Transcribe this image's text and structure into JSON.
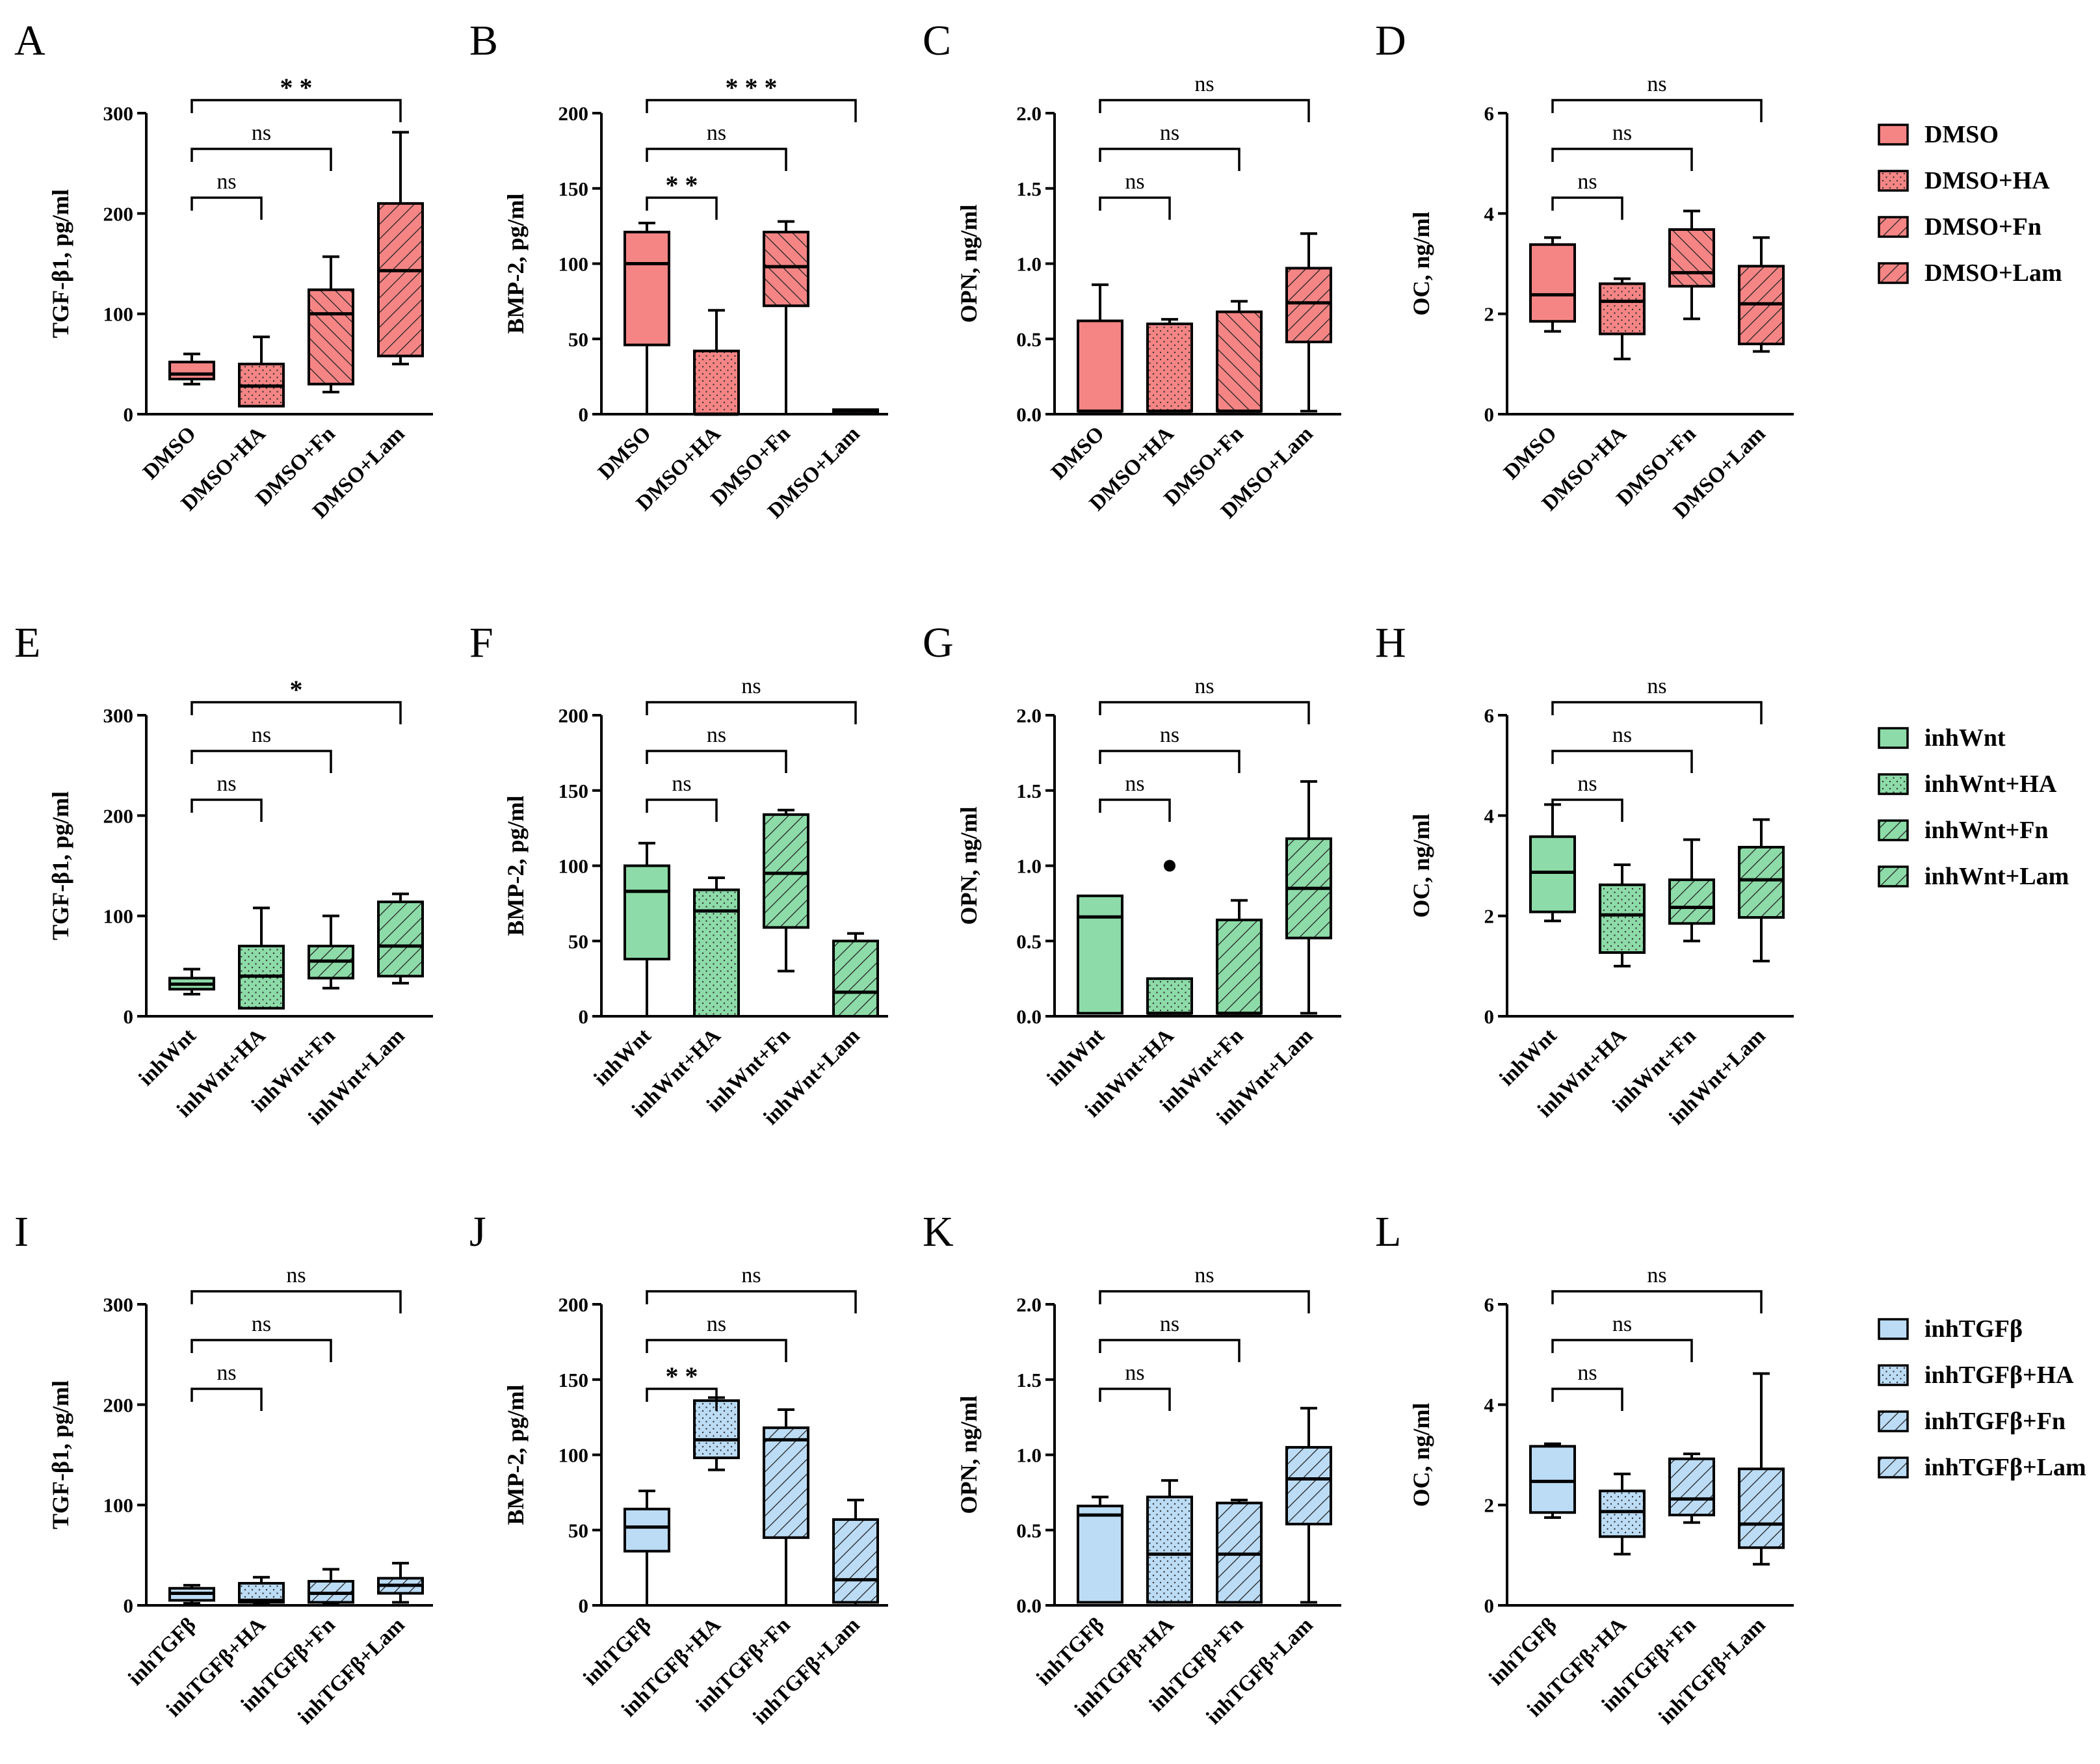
{
  "figure": {
    "colors": {
      "DMSO": "#f58585",
      "inhWnt": "#8ddba8",
      "inhTGFb": "#bcdcf5",
      "line": "#000000",
      "black": "#000000"
    },
    "legends": [
      {
        "row": 0,
        "entries": [
          {
            "label": "DMSO",
            "pattern": "solid"
          },
          {
            "label": "DMSO+HA",
            "pattern": "dots"
          },
          {
            "label": "DMSO+Fn",
            "pattern": "hatchR"
          },
          {
            "label": "DMSO+Lam",
            "pattern": "hatchR"
          }
        ]
      },
      {
        "row": 1,
        "entries": [
          {
            "label": "inhWnt",
            "pattern": "solid"
          },
          {
            "label": "inhWnt+HA",
            "pattern": "dots"
          },
          {
            "label": "inhWnt+Fn",
            "pattern": "hatchR"
          },
          {
            "label": "inhWnt+Lam",
            "pattern": "hatchR"
          }
        ]
      },
      {
        "row": 2,
        "entries": [
          {
            "label": "inhTGFβ",
            "pattern": "solid"
          },
          {
            "label": "inhTGFβ+HA",
            "pattern": "dots"
          },
          {
            "label": "inhTGFβ+Fn",
            "pattern": "hatchR"
          },
          {
            "label": "inhTGFβ+Lam",
            "pattern": "hatchR"
          }
        ]
      }
    ]
  },
  "chart_data": [
    {
      "panel": "A",
      "type": "box",
      "row": 0,
      "col": 0,
      "color": "DMSO",
      "ylabel": "TGF-β1, pg/ml",
      "ylim": [
        0,
        300
      ],
      "yticks": [
        "0",
        "100",
        "200",
        "300"
      ],
      "categories": [
        "DMSO",
        "DMSO+HA",
        "DMSO+Fn",
        "DMSO+Lam"
      ],
      "patterns": [
        "solid",
        "dots",
        "hatchL",
        "hatchR"
      ],
      "boxes": [
        {
          "min": 30,
          "q1": 35,
          "median": 40,
          "q3": 52,
          "max": 60
        },
        {
          "min": 8,
          "q1": 8,
          "median": 28,
          "q3": 50,
          "max": 77
        },
        {
          "min": 22,
          "q1": 30,
          "median": 100,
          "q3": 124,
          "max": 157
        },
        {
          "min": 50,
          "q1": 58,
          "median": 143,
          "q3": 210,
          "max": 281
        }
      ],
      "brackets": [
        {
          "to": 1,
          "label": "ns",
          "level": 0
        },
        {
          "to": 2,
          "label": "ns",
          "level": 1
        },
        {
          "to": 3,
          "label": "* *",
          "level": 2
        }
      ]
    },
    {
      "panel": "B",
      "type": "box",
      "row": 0,
      "col": 1,
      "color": "DMSO",
      "ylabel": "BMP-2, pg/ml",
      "ylim": [
        0,
        200
      ],
      "yticks": [
        "0",
        "50",
        "100",
        "150",
        "200"
      ],
      "categories": [
        "DMSO",
        "DMSO+HA",
        "DMSO+Fn",
        "DMSO+Lam"
      ],
      "patterns": [
        "solid",
        "dots",
        "hatchL",
        "hatchR"
      ],
      "boxes": [
        {
          "min": 0,
          "q1": 46,
          "median": 100,
          "q3": 121,
          "max": 127
        },
        {
          "min": 0,
          "q1": 0,
          "median": 0,
          "q3": 42,
          "max": 69
        },
        {
          "min": 0,
          "q1": 72,
          "median": 98,
          "q3": 121,
          "max": 128
        },
        {
          "min": 0,
          "q1": 0,
          "median": 2,
          "q3": 3,
          "max": 3
        }
      ],
      "brackets": [
        {
          "to": 1,
          "label": "* *",
          "level": 0
        },
        {
          "to": 2,
          "label": "ns",
          "level": 1
        },
        {
          "to": 3,
          "label": "* * *",
          "level": 2
        }
      ]
    },
    {
      "panel": "C",
      "type": "box",
      "row": 0,
      "col": 2,
      "color": "DMSO",
      "ylabel": "OPN, ng/ml",
      "ylim": [
        0,
        2
      ],
      "yticks": [
        "0.0",
        "0.5",
        "1.0",
        "1.5",
        "2.0"
      ],
      "categories": [
        "DMSO",
        "DMSO+HA",
        "DMSO+Fn",
        "DMSO+Lam"
      ],
      "patterns": [
        "solid",
        "dots",
        "hatchL",
        "hatchR"
      ],
      "boxes": [
        {
          "min": 0.02,
          "q1": 0.02,
          "median": 0.02,
          "q3": 0.62,
          "max": 0.86
        },
        {
          "min": 0.02,
          "q1": 0.02,
          "median": 0.02,
          "q3": 0.6,
          "max": 0.63
        },
        {
          "min": 0.02,
          "q1": 0.02,
          "median": 0.02,
          "q3": 0.68,
          "max": 0.75
        },
        {
          "min": 0.02,
          "q1": 0.48,
          "median": 0.74,
          "q3": 0.97,
          "max": 1.2
        }
      ],
      "brackets": [
        {
          "to": 1,
          "label": "ns",
          "level": 0
        },
        {
          "to": 2,
          "label": "ns",
          "level": 1
        },
        {
          "to": 3,
          "label": "ns",
          "level": 2
        }
      ]
    },
    {
      "panel": "D",
      "type": "box",
      "row": 0,
      "col": 3,
      "color": "DMSO",
      "ylabel": "OC, ng/ml",
      "ylim": [
        0,
        6
      ],
      "yticks": [
        "0",
        "2",
        "4",
        "6"
      ],
      "categories": [
        "DMSO",
        "DMSO+HA",
        "DMSO+Fn",
        "DMSO+Lam"
      ],
      "patterns": [
        "solid",
        "dots",
        "hatchL",
        "hatchR"
      ],
      "boxes": [
        {
          "min": 1.65,
          "q1": 1.85,
          "median": 2.38,
          "q3": 3.38,
          "max": 3.52
        },
        {
          "min": 1.1,
          "q1": 1.6,
          "median": 2.25,
          "q3": 2.6,
          "max": 2.7
        },
        {
          "min": 1.9,
          "q1": 2.55,
          "median": 2.82,
          "q3": 3.68,
          "max": 4.05
        },
        {
          "min": 1.25,
          "q1": 1.4,
          "median": 2.2,
          "q3": 2.95,
          "max": 3.52
        }
      ],
      "brackets": [
        {
          "to": 1,
          "label": "ns",
          "level": 0
        },
        {
          "to": 2,
          "label": "ns",
          "level": 1
        },
        {
          "to": 3,
          "label": "ns",
          "level": 2
        }
      ]
    },
    {
      "panel": "E",
      "type": "box",
      "row": 1,
      "col": 0,
      "color": "inhWnt",
      "ylabel": "TGF-β1, pg/ml",
      "ylim": [
        0,
        300
      ],
      "yticks": [
        "0",
        "100",
        "200",
        "300"
      ],
      "categories": [
        "inhWnt",
        "inhWnt+HA",
        "inhWnt+Fn",
        "inhWnt+Lam"
      ],
      "patterns": [
        "solid",
        "dots",
        "hatchR",
        "hatchR"
      ],
      "boxes": [
        {
          "min": 22,
          "q1": 27,
          "median": 32,
          "q3": 38,
          "max": 47
        },
        {
          "min": 8,
          "q1": 8,
          "median": 40,
          "q3": 70,
          "max": 108
        },
        {
          "min": 28,
          "q1": 38,
          "median": 55,
          "q3": 70,
          "max": 100
        },
        {
          "min": 33,
          "q1": 40,
          "median": 70,
          "q3": 114,
          "max": 122
        }
      ],
      "brackets": [
        {
          "to": 1,
          "label": "ns",
          "level": 0
        },
        {
          "to": 2,
          "label": "ns",
          "level": 1
        },
        {
          "to": 3,
          "label": "*",
          "level": 2
        }
      ]
    },
    {
      "panel": "F",
      "type": "box",
      "row": 1,
      "col": 1,
      "color": "inhWnt",
      "ylabel": "BMP-2, pg/ml",
      "ylim": [
        0,
        200
      ],
      "yticks": [
        "0",
        "50",
        "100",
        "150",
        "200"
      ],
      "categories": [
        "inhWnt",
        "inhWnt+HA",
        "inhWnt+Fn",
        "inhWnt+Lam"
      ],
      "patterns": [
        "solid",
        "dots",
        "hatchR",
        "hatchR"
      ],
      "boxes": [
        {
          "min": 0,
          "q1": 38,
          "median": 83,
          "q3": 100,
          "max": 115
        },
        {
          "min": 0,
          "q1": 0,
          "median": 70,
          "q3": 84,
          "max": 92
        },
        {
          "min": 30,
          "q1": 59,
          "median": 95,
          "q3": 134,
          "max": 137
        },
        {
          "min": 0,
          "q1": 0,
          "median": 16,
          "q3": 50,
          "max": 55
        }
      ],
      "brackets": [
        {
          "to": 1,
          "label": "ns",
          "level": 0
        },
        {
          "to": 2,
          "label": "ns",
          "level": 1
        },
        {
          "to": 3,
          "label": "ns",
          "level": 2
        }
      ]
    },
    {
      "panel": "G",
      "type": "box",
      "row": 1,
      "col": 2,
      "color": "inhWnt",
      "ylabel": "OPN, ng/ml",
      "ylim": [
        0,
        2
      ],
      "yticks": [
        "0.0",
        "0.5",
        "1.0",
        "1.5",
        "2.0"
      ],
      "categories": [
        "inhWnt",
        "inhWnt+HA",
        "inhWnt+Fn",
        "inhWnt+Lam"
      ],
      "patterns": [
        "solid",
        "dots",
        "hatchR",
        "hatchR"
      ],
      "boxes": [
        {
          "min": 0.02,
          "q1": 0.02,
          "median": 0.66,
          "q3": 0.8,
          "max": 0.8
        },
        {
          "min": 0.02,
          "q1": 0.02,
          "median": 0.02,
          "q3": 0.25,
          "max": 0.25,
          "outlier": 1.0
        },
        {
          "min": 0.02,
          "q1": 0.02,
          "median": 0.02,
          "q3": 0.64,
          "max": 0.77
        },
        {
          "min": 0.02,
          "q1": 0.52,
          "median": 0.85,
          "q3": 1.18,
          "max": 1.56
        }
      ],
      "brackets": [
        {
          "to": 1,
          "label": "ns",
          "level": 0
        },
        {
          "to": 2,
          "label": "ns",
          "level": 1
        },
        {
          "to": 3,
          "label": "ns",
          "level": 2
        }
      ]
    },
    {
      "panel": "H",
      "type": "box",
      "row": 1,
      "col": 3,
      "color": "inhWnt",
      "ylabel": "OC, ng/ml",
      "ylim": [
        0,
        6
      ],
      "yticks": [
        "0",
        "2",
        "4",
        "6"
      ],
      "categories": [
        "inhWnt",
        "inhWnt+HA",
        "inhWnt+Fn",
        "inhWnt+Lam"
      ],
      "patterns": [
        "solid",
        "dots",
        "hatchR",
        "hatchR"
      ],
      "boxes": [
        {
          "min": 1.9,
          "q1": 2.08,
          "median": 2.87,
          "q3": 3.58,
          "max": 4.22
        },
        {
          "min": 1.0,
          "q1": 1.27,
          "median": 2.02,
          "q3": 2.62,
          "max": 3.02
        },
        {
          "min": 1.5,
          "q1": 1.85,
          "median": 2.17,
          "q3": 2.72,
          "max": 3.52
        },
        {
          "min": 1.1,
          "q1": 1.97,
          "median": 2.72,
          "q3": 3.37,
          "max": 3.92
        }
      ],
      "brackets": [
        {
          "to": 1,
          "label": "ns",
          "level": 0
        },
        {
          "to": 2,
          "label": "ns",
          "level": 1
        },
        {
          "to": 3,
          "label": "ns",
          "level": 2
        }
      ]
    },
    {
      "panel": "I",
      "type": "box",
      "row": 2,
      "col": 0,
      "color": "inhTGFb",
      "ylabel": "TGF-β1, pg/ml",
      "ylim": [
        0,
        300
      ],
      "yticks": [
        "0",
        "100",
        "200",
        "300"
      ],
      "categories": [
        "inhTGFβ",
        "inhTGFβ+HA",
        "inhTGFβ+Fn",
        "inhTGFβ+Lam"
      ],
      "patterns": [
        "solid",
        "dots",
        "hatchR",
        "hatchR"
      ],
      "boxes": [
        {
          "min": 2,
          "q1": 5,
          "median": 12,
          "q3": 17,
          "max": 20
        },
        {
          "min": 2,
          "q1": 3,
          "median": 5,
          "q3": 22,
          "max": 28
        },
        {
          "min": 2,
          "q1": 3,
          "median": 12,
          "q3": 24,
          "max": 36
        },
        {
          "min": 3,
          "q1": 12,
          "median": 20,
          "q3": 27,
          "max": 42
        }
      ],
      "brackets": [
        {
          "to": 1,
          "label": "ns",
          "level": 0
        },
        {
          "to": 2,
          "label": "ns",
          "level": 1
        },
        {
          "to": 3,
          "label": "ns",
          "level": 2
        }
      ]
    },
    {
      "panel": "J",
      "type": "box",
      "row": 2,
      "col": 1,
      "color": "inhTGFb",
      "ylabel": "BMP-2, pg/ml",
      "ylim": [
        0,
        200
      ],
      "yticks": [
        "0",
        "50",
        "100",
        "150",
        "200"
      ],
      "categories": [
        "inhTGFβ",
        "inhTGFβ+HA",
        "inhTGFβ+Fn",
        "inhTGFβ+Lam"
      ],
      "patterns": [
        "solid",
        "dots",
        "hatchR",
        "hatchR"
      ],
      "boxes": [
        {
          "min": 0,
          "q1": 36,
          "median": 52,
          "q3": 64,
          "max": 76
        },
        {
          "min": 90,
          "q1": 98,
          "median": 110,
          "q3": 136,
          "max": 138
        },
        {
          "min": 0,
          "q1": 45,
          "median": 110,
          "q3": 118,
          "max": 130
        },
        {
          "min": 0,
          "q1": 2,
          "median": 17,
          "q3": 57,
          "max": 70
        }
      ],
      "brackets": [
        {
          "to": 1,
          "label": "* *",
          "level": 0
        },
        {
          "to": 2,
          "label": "ns",
          "level": 1
        },
        {
          "to": 3,
          "label": "ns",
          "level": 2
        }
      ]
    },
    {
      "panel": "K",
      "type": "box",
      "row": 2,
      "col": 2,
      "color": "inhTGFb",
      "ylabel": "OPN, ng/ml",
      "ylim": [
        0,
        2
      ],
      "yticks": [
        "0.0",
        "0.5",
        "1.0",
        "1.5",
        "2.0"
      ],
      "categories": [
        "inhTGFβ",
        "inhTGFβ+HA",
        "inhTGFβ+Fn",
        "inhTGFβ+Lam"
      ],
      "patterns": [
        "solid",
        "dots",
        "hatchR",
        "hatchR"
      ],
      "boxes": [
        {
          "min": 0.02,
          "q1": 0.02,
          "median": 0.6,
          "q3": 0.66,
          "max": 0.72
        },
        {
          "min": 0.02,
          "q1": 0.02,
          "median": 0.34,
          "q3": 0.72,
          "max": 0.83
        },
        {
          "min": 0.02,
          "q1": 0.02,
          "median": 0.34,
          "q3": 0.68,
          "max": 0.7
        },
        {
          "min": 0.02,
          "q1": 0.54,
          "median": 0.84,
          "q3": 1.05,
          "max": 1.31
        }
      ],
      "brackets": [
        {
          "to": 1,
          "label": "ns",
          "level": 0
        },
        {
          "to": 2,
          "label": "ns",
          "level": 1
        },
        {
          "to": 3,
          "label": "ns",
          "level": 2
        }
      ]
    },
    {
      "panel": "L",
      "type": "box",
      "row": 2,
      "col": 3,
      "color": "inhTGFb",
      "ylabel": "OC, ng/ml",
      "ylim": [
        0,
        6
      ],
      "yticks": [
        "0",
        "2",
        "4",
        "6"
      ],
      "categories": [
        "inhTGFβ",
        "inhTGFβ+HA",
        "inhTGFβ+Fn",
        "inhTGFβ+Lam"
      ],
      "patterns": [
        "solid",
        "dots",
        "hatchR",
        "hatchR"
      ],
      "boxes": [
        {
          "min": 1.75,
          "q1": 1.85,
          "median": 2.47,
          "q3": 3.17,
          "max": 3.22
        },
        {
          "min": 1.02,
          "q1": 1.37,
          "median": 1.87,
          "q3": 2.28,
          "max": 2.62
        },
        {
          "min": 1.65,
          "q1": 1.8,
          "median": 2.12,
          "q3": 2.92,
          "max": 3.02
        },
        {
          "min": 0.82,
          "q1": 1.15,
          "median": 1.62,
          "q3": 2.72,
          "max": 4.62
        }
      ],
      "brackets": [
        {
          "to": 1,
          "label": "ns",
          "level": 0
        },
        {
          "to": 2,
          "label": "ns",
          "level": 1
        },
        {
          "to": 3,
          "label": "ns",
          "level": 2
        }
      ]
    }
  ]
}
